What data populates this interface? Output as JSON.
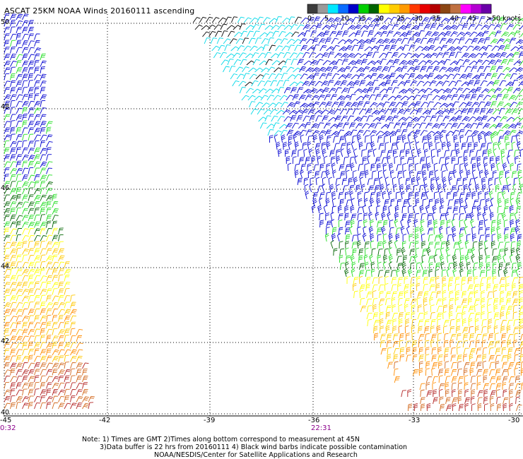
{
  "title": "ASCAT 25KM NOAA Winds 20160111 ascending",
  "colorbar": {
    "labels": [
      "0",
      "5",
      "10",
      "15",
      "20",
      "25",
      "30",
      "35",
      "40",
      "45",
      ">50 knots"
    ],
    "colors": [
      "#3c3c3c",
      "#9a9a9a",
      "#00e8ff",
      "#0a6cff",
      "#0000c8",
      "#00d000",
      "#006400",
      "#ffff00",
      "#ffcc00",
      "#ff9a00",
      "#ff3800",
      "#e80000",
      "#b40000",
      "#8b4513",
      "#c07040",
      "#ff00ff",
      "#b400d2",
      "#6a00a8"
    ]
  },
  "latitude_labels": [
    "50",
    "48",
    "46",
    "44",
    "42",
    "40"
  ],
  "longitude_labels": [
    "-45",
    "-42",
    "-39",
    "-36",
    "-33",
    "-30"
  ],
  "pass_times": [
    "0:32",
    "22:31"
  ],
  "notes": [
    "Note: 1) Times are GMT 2)Times along bottom correspond to measurement at 45N",
    "3)Data buffer is 22 hrs from 20160111 4) Black wind barbs indicate possible contamination",
    "NOAA/NESDIS/Center for Satellite Applications and Research"
  ],
  "wind_color_key": {
    "black": "#000000",
    "cyan": "#00d8e8",
    "blue": "#0000d0",
    "light_green": "#22dd22",
    "dark_green": "#006400",
    "yellow": "#ffff00",
    "gold": "#ffc800",
    "orange": "#ff8c00",
    "dark_orange": "#d2691e",
    "red_brown": "#b22222"
  }
}
